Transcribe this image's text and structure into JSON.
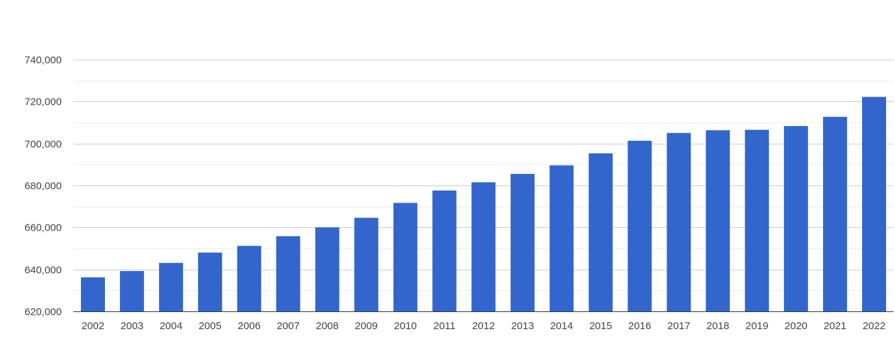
{
  "chart_data": {
    "type": "bar",
    "title": "",
    "xlabel": "",
    "ylabel": "",
    "categories": [
      "2002",
      "2003",
      "2004",
      "2005",
      "2006",
      "2007",
      "2008",
      "2009",
      "2010",
      "2011",
      "2012",
      "2013",
      "2014",
      "2015",
      "2016",
      "2017",
      "2018",
      "2019",
      "2020",
      "2021",
      "2022"
    ],
    "values": [
      636200,
      639200,
      643100,
      648000,
      651200,
      655800,
      660000,
      664600,
      671700,
      677600,
      681500,
      685500,
      689600,
      695300,
      701300,
      705000,
      706300,
      706500,
      708300,
      712700,
      722200
    ],
    "ylim": [
      620000,
      740000
    ],
    "yticks": [
      620000,
      640000,
      660000,
      680000,
      700000,
      720000,
      740000
    ],
    "ytick_labels": [
      "620,000",
      "640,000",
      "660,000",
      "680,000",
      "700,000",
      "720,000",
      "740,000"
    ],
    "grid": true,
    "legend": "none",
    "bar_color": "#3366cc"
  }
}
